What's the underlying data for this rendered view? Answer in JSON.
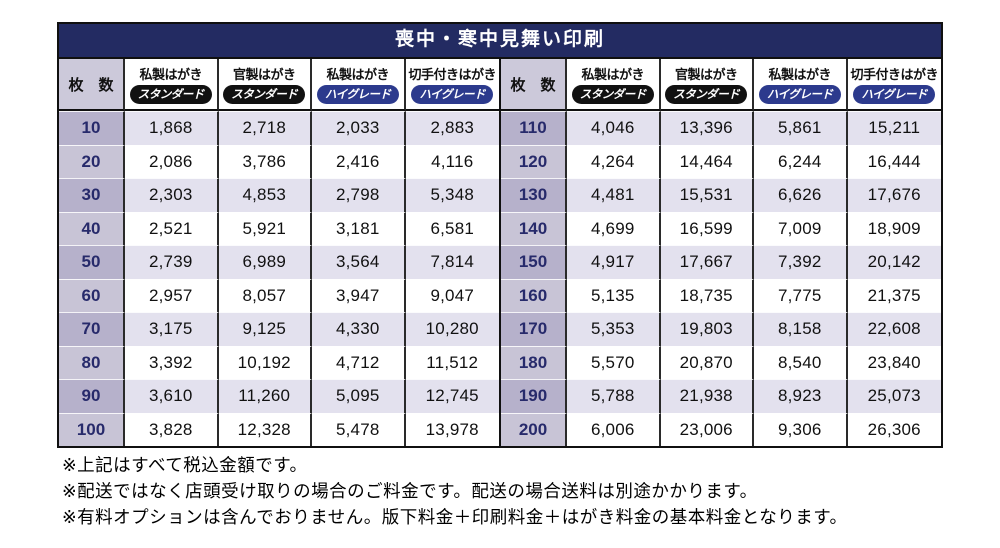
{
  "title": "喪中・寒中見舞い印刷",
  "header": {
    "qty_label": "枚　数"
  },
  "product_columns": [
    {
      "name": "私製はがき",
      "grade": "スタンダード",
      "grade_style": "standard"
    },
    {
      "name": "官製はがき",
      "grade": "スタンダード",
      "grade_style": "standard"
    },
    {
      "name": "私製はがき",
      "grade": "ハイグレード",
      "grade_style": "highgrade"
    },
    {
      "name": "切手付きはがき",
      "grade": "ハイグレード",
      "grade_style": "highgrade"
    }
  ],
  "tables": [
    {
      "rows": [
        {
          "qty": "10",
          "prices": [
            "1,868",
            "2,718",
            "2,033",
            "2,883"
          ]
        },
        {
          "qty": "20",
          "prices": [
            "2,086",
            "3,786",
            "2,416",
            "4,116"
          ]
        },
        {
          "qty": "30",
          "prices": [
            "2,303",
            "4,853",
            "2,798",
            "5,348"
          ]
        },
        {
          "qty": "40",
          "prices": [
            "2,521",
            "5,921",
            "3,181",
            "6,581"
          ]
        },
        {
          "qty": "50",
          "prices": [
            "2,739",
            "6,989",
            "3,564",
            "7,814"
          ]
        },
        {
          "qty": "60",
          "prices": [
            "2,957",
            "8,057",
            "3,947",
            "9,047"
          ]
        },
        {
          "qty": "70",
          "prices": [
            "3,175",
            "9,125",
            "4,330",
            "10,280"
          ]
        },
        {
          "qty": "80",
          "prices": [
            "3,392",
            "10,192",
            "4,712",
            "11,512"
          ]
        },
        {
          "qty": "90",
          "prices": [
            "3,610",
            "11,260",
            "5,095",
            "12,745"
          ]
        },
        {
          "qty": "100",
          "prices": [
            "3,828",
            "12,328",
            "5,478",
            "13,978"
          ]
        }
      ]
    },
    {
      "rows": [
        {
          "qty": "110",
          "prices": [
            "4,046",
            "13,396",
            "5,861",
            "15,211"
          ]
        },
        {
          "qty": "120",
          "prices": [
            "4,264",
            "14,464",
            "6,244",
            "16,444"
          ]
        },
        {
          "qty": "130",
          "prices": [
            "4,481",
            "15,531",
            "6,626",
            "17,676"
          ]
        },
        {
          "qty": "140",
          "prices": [
            "4,699",
            "16,599",
            "7,009",
            "18,909"
          ]
        },
        {
          "qty": "150",
          "prices": [
            "4,917",
            "17,667",
            "7,392",
            "20,142"
          ]
        },
        {
          "qty": "160",
          "prices": [
            "5,135",
            "18,735",
            "7,775",
            "21,375"
          ]
        },
        {
          "qty": "170",
          "prices": [
            "5,353",
            "19,803",
            "8,158",
            "22,608"
          ]
        },
        {
          "qty": "180",
          "prices": [
            "5,570",
            "20,870",
            "8,540",
            "23,840"
          ]
        },
        {
          "qty": "190",
          "prices": [
            "5,788",
            "21,938",
            "8,923",
            "25,073"
          ]
        },
        {
          "qty": "200",
          "prices": [
            "6,006",
            "23,006",
            "9,306",
            "26,306"
          ]
        }
      ]
    }
  ],
  "notes": [
    "※上記はすべて税込金額です。",
    "※配送ではなく店頭受け取りの場合のご料金です。配送の場合送料は別途かかります。",
    "※有料オプションは含んでおりません。版下料金＋印刷料金＋はがき料金の基本料金となります。"
  ],
  "colors": {
    "title_bar": "#232b62",
    "standard_pill": "#111111",
    "highgrade_pill": "#2c3a8d",
    "qty_header": "#ccc9da",
    "qty_cell_odd": "#b6b1cb",
    "qty_cell_even": "#c8c4d6",
    "row_odd": "#e3e1ee",
    "row_even": "#ffffff",
    "qty_text": "#272a6b"
  }
}
